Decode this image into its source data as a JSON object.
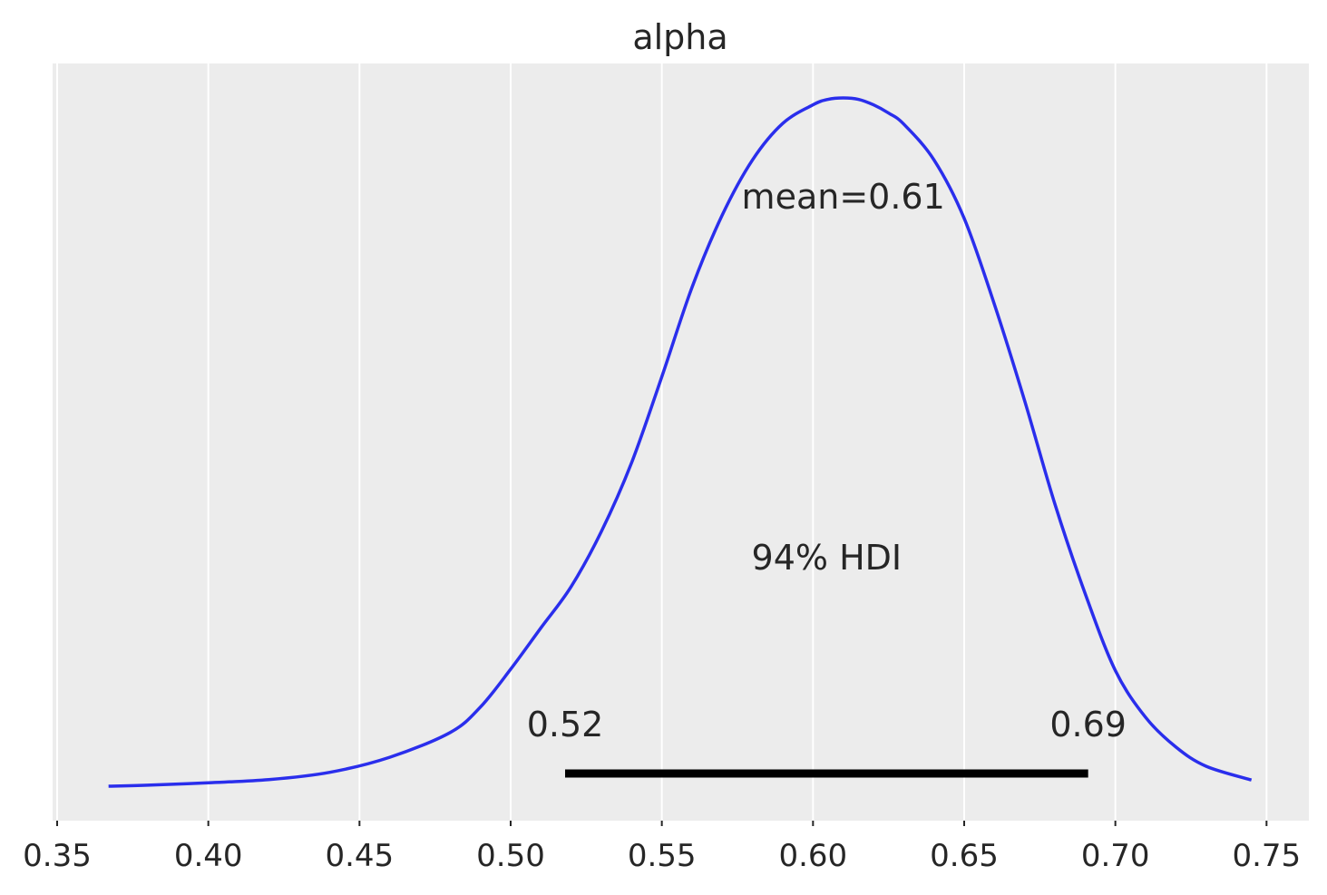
{
  "chart_data": {
    "type": "line",
    "title": "alpha",
    "xlabel": "",
    "ylabel": "",
    "xlim": [
      0.3485,
      0.764
    ],
    "xticks": [
      0.35,
      0.4,
      0.45,
      0.5,
      0.55,
      0.6,
      0.65,
      0.7,
      0.75
    ],
    "xtick_labels": [
      "0.35",
      "0.40",
      "0.45",
      "0.50",
      "0.55",
      "0.60",
      "0.65",
      "0.70",
      "0.75"
    ],
    "y_axis_visible": false,
    "grid": "vertical",
    "colors": {
      "background": "#ececec",
      "grid": "#ffffff",
      "kde_line": "#2a2eec",
      "hdi_bar": "#000000",
      "text": "#262626"
    },
    "series": [
      {
        "x": [
          0.367,
          0.38,
          0.4,
          0.42,
          0.44,
          0.46,
          0.48,
          0.49,
          0.5,
          0.51,
          0.52,
          0.53,
          0.54,
          0.55,
          0.56,
          0.57,
          0.58,
          0.59,
          0.6,
          0.605,
          0.61,
          0.615,
          0.62,
          0.625,
          0.63,
          0.64,
          0.65,
          0.66,
          0.67,
          0.68,
          0.69,
          0.7,
          0.71,
          0.72,
          0.73,
          0.745
        ],
        "y": [
          0.0,
          0.0015,
          0.005,
          0.0095,
          0.02,
          0.042,
          0.078,
          0.115,
          0.17,
          0.23,
          0.29,
          0.37,
          0.47,
          0.595,
          0.725,
          0.83,
          0.91,
          0.963,
          0.99,
          0.998,
          1.0,
          0.998,
          0.99,
          0.978,
          0.962,
          0.91,
          0.825,
          0.7,
          0.56,
          0.41,
          0.28,
          0.168,
          0.1,
          0.057,
          0.029,
          0.009
        ]
      }
    ],
    "hdi": {
      "prob_label": "94% HDI",
      "lower": 0.518,
      "upper": 0.691,
      "lower_label": "0.52",
      "upper_label": "0.69"
    },
    "mean": {
      "value": 0.61,
      "label": "mean=0.61"
    }
  }
}
